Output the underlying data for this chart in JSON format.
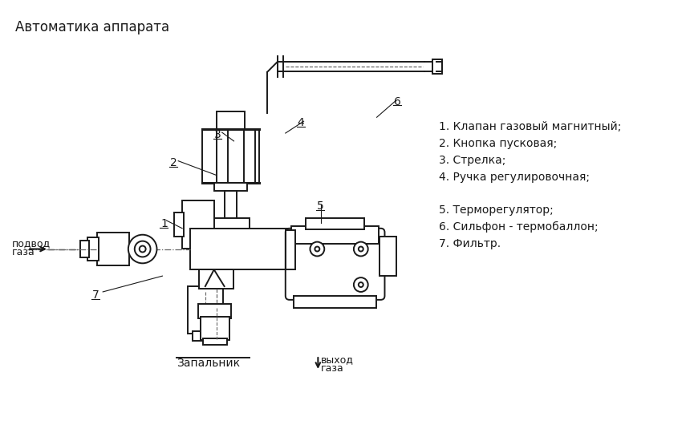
{
  "title": "Автоматика аппарата",
  "bg_color": "#ffffff",
  "line_color": "#1a1a1a",
  "legend_items": [
    "1. Клапан газовый магнитный;",
    "2. Кнопка пусковая;",
    "3. Стрелка;",
    "4. Ручка регулировочная;",
    "",
    "5. Терморегулятор;",
    "6. Сильфон - термобаллон;",
    "7. Фильтр."
  ]
}
